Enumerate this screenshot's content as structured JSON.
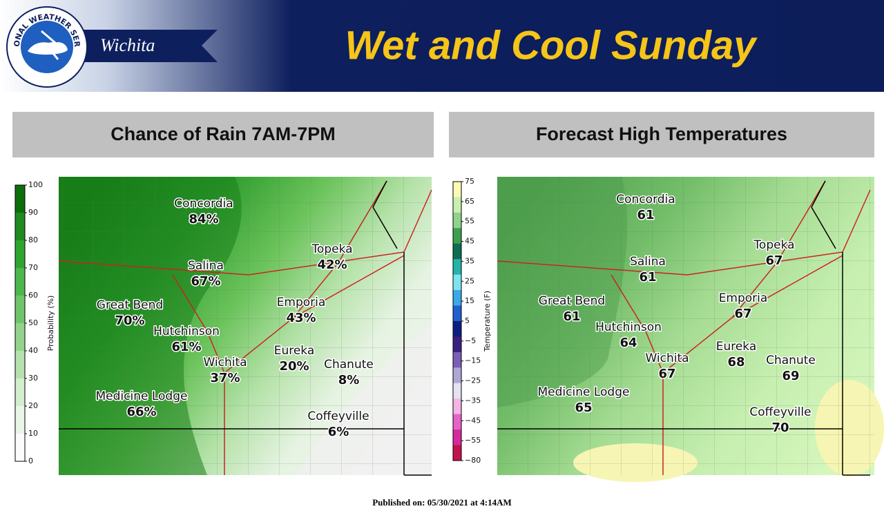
{
  "header": {
    "logo_text": "NATIONAL WEATHER SERVICE",
    "office": "Wichita",
    "title": "Wet and Cool Sunday"
  },
  "panels": [
    {
      "title": "Chance of Rain 7AM-7PM",
      "colorbar": {
        "label": "Probability (%)",
        "ticks": [
          "100",
          "90",
          "80",
          "70",
          "60",
          "50",
          "40",
          "30",
          "20",
          "10",
          "0"
        ]
      },
      "cities": [
        {
          "name": "Concordia",
          "value": "84%"
        },
        {
          "name": "Topeka",
          "value": "42%"
        },
        {
          "name": "Salina",
          "value": "67%"
        },
        {
          "name": "Great Bend",
          "value": "70%"
        },
        {
          "name": "Emporia",
          "value": "43%"
        },
        {
          "name": "Hutchinson",
          "value": "61%"
        },
        {
          "name": "Eureka",
          "value": "20%"
        },
        {
          "name": "Chanute",
          "value": "8%"
        },
        {
          "name": "Wichita",
          "value": "37%"
        },
        {
          "name": "Medicine Lodge",
          "value": "66%"
        },
        {
          "name": "Coffeyville",
          "value": "6%"
        }
      ]
    },
    {
      "title": "Forecast High Temperatures",
      "colorbar": {
        "label": "Temperature (F)",
        "ticks": [
          "75",
          "65",
          "55",
          "45",
          "35",
          "25",
          "15",
          "5",
          "−5",
          "−15",
          "−25",
          "−35",
          "−45",
          "−55",
          "−80"
        ]
      },
      "cities": [
        {
          "name": "Concordia",
          "value": "61"
        },
        {
          "name": "Topeka",
          "value": "67"
        },
        {
          "name": "Salina",
          "value": "61"
        },
        {
          "name": "Great Bend",
          "value": "61"
        },
        {
          "name": "Emporia",
          "value": "67"
        },
        {
          "name": "Hutchinson",
          "value": "64"
        },
        {
          "name": "Eureka",
          "value": "68"
        },
        {
          "name": "Chanute",
          "value": "69"
        },
        {
          "name": "Wichita",
          "value": "67"
        },
        {
          "name": "Medicine Lodge",
          "value": "65"
        },
        {
          "name": "Coffeyville",
          "value": "70"
        }
      ]
    }
  ],
  "footer": "Published on: 05/30/2021 at 4:14AM"
}
